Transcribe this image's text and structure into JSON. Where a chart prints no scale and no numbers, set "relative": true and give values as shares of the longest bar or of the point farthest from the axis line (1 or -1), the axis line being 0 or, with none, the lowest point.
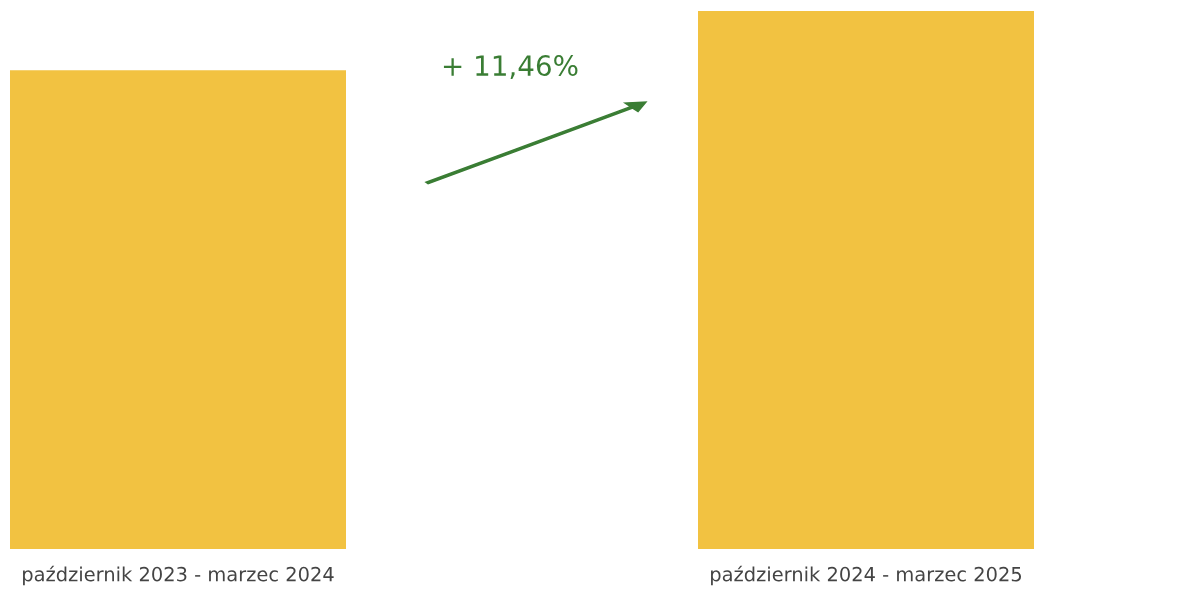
{
  "chart_data": {
    "type": "bar",
    "relative": true,
    "categories": [
      "październik 2023 - marzec 2024",
      "październik 2024 - marzec 2025"
    ],
    "values": [
      0.89,
      1
    ],
    "color": "#f2c241",
    "grid": false,
    "legend": false,
    "annotations": [
      "+ 11,46%"
    ]
  }
}
